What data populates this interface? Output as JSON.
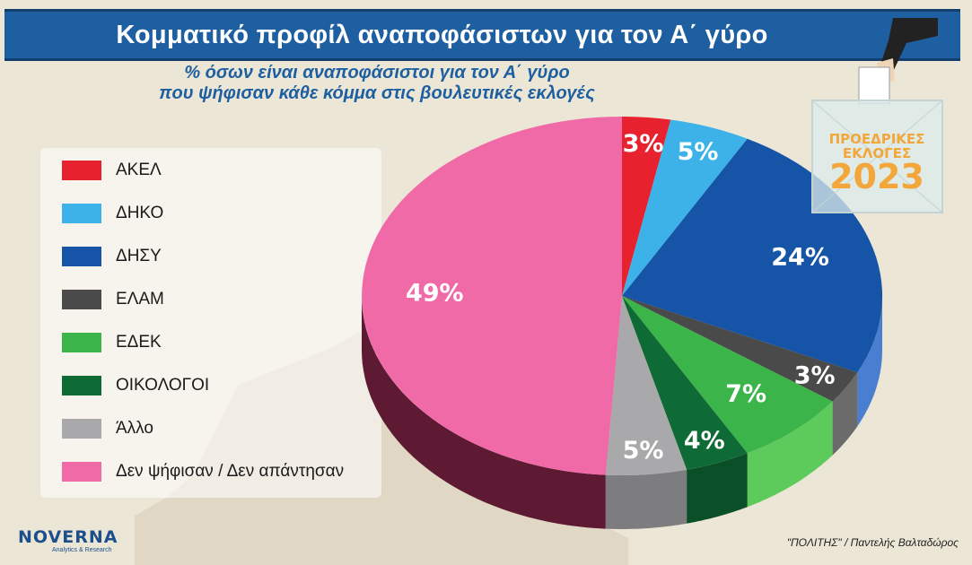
{
  "header": {
    "title": "Κομματικό προφίλ αναποφάσιστων για τον Α΄ γύρο",
    "subtitle_line1": "% όσων είναι αναποφάσιστοι για τον Α΄ γύρο",
    "subtitle_line2": "που ψήφισαν κάθε κόμμα στις βουλευτικές εκλογές"
  },
  "badge": {
    "line1": "ΠΡΟΕΔΡΙΚΕΣ",
    "line2": "ΕΚΛΟΓΕΣ",
    "year": "2023"
  },
  "logo": {
    "name": "NOVERNA",
    "tagline": "Analytics & Research"
  },
  "credit": "\"ΠΟΛΙΤΗΣ\" / Παντελής Βαλταδώρος",
  "chart_data": {
    "type": "pie",
    "title": "Κομματικό προφίλ αναποφάσιστων για τον Α΄ γύρο",
    "subtitle": "% όσων είναι αναποφάσιστοι για τον Α΄ γύρο που ψήφισαν κάθε κόμμα στις βουλευτικές εκλογές",
    "legend_position": "left",
    "slices": [
      {
        "label": "ΑΚΕΛ",
        "value": 3,
        "display": "3%",
        "color": "#e8212e",
        "side": "#a3101a"
      },
      {
        "label": "ΔΗΚΟ",
        "value": 5,
        "display": "5%",
        "color": "#3db2e8",
        "side": "#2785b3"
      },
      {
        "label": "ΔΗΣΥ",
        "value": 24,
        "display": "24%",
        "color": "#1554a6",
        "side": "#4a7ed0"
      },
      {
        "label": "ΕΛΑΜ",
        "value": 3,
        "display": "3%",
        "color": "#4a4a4a",
        "side": "#6b6b6b"
      },
      {
        "label": "ΕΔΕΚ",
        "value": 7,
        "display": "7%",
        "color": "#3bb54a",
        "side": "#5ccb5c"
      },
      {
        "label": "ΟΙΚΟΛΟΓΟΙ",
        "value": 4,
        "display": "4%",
        "color": "#0e6b35",
        "side": "#0a4f27"
      },
      {
        "label": "Άλλο",
        "value": 5,
        "display": "5%",
        "color": "#a9a9ab",
        "side": "#7d7d80"
      },
      {
        "label": "Δεν ψήφισαν / Δεν απάντησαν",
        "value": 49,
        "display": "49%",
        "color": "#f06aa8",
        "side": "#5e1a33"
      }
    ]
  }
}
